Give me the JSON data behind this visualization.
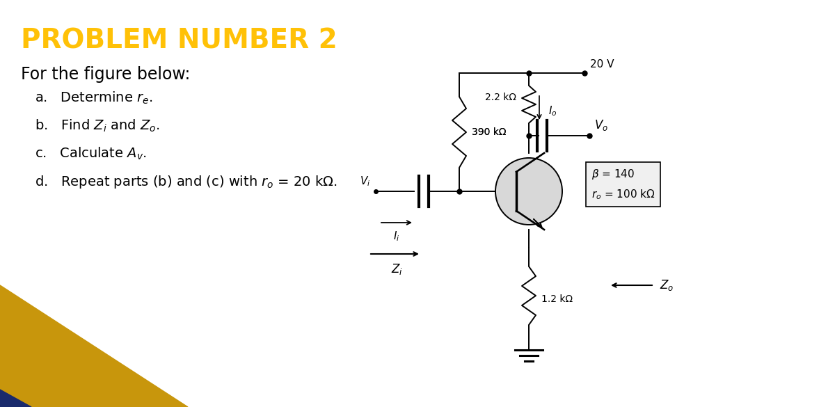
{
  "title": "PROBLEM NUMBER 2",
  "title_color": "#FFC107",
  "title_fontsize": 28,
  "subtitle": "For the figure below:",
  "subtitle_fontsize": 17,
  "items": [
    "a.   Determine $r_e$.",
    "b.   Find $Z_i$ and $Z_o$.",
    "c.   Calculate $A_v$.",
    "d.   Repeat parts (b) and (c) with $r_o$ = 20 kΩ."
  ],
  "items_fontsize": 14,
  "background_color": "#ffffff",
  "R1": "390 kΩ",
  "R2": "2.2 kΩ",
  "R3": "1.2 kΩ",
  "Vcc": "20 V",
  "beta_text": "β = 140",
  "ro_text": "$r_o$ = 100 kΩ",
  "gold_color": "#C8960C",
  "navy_color": "#1a2a6c"
}
